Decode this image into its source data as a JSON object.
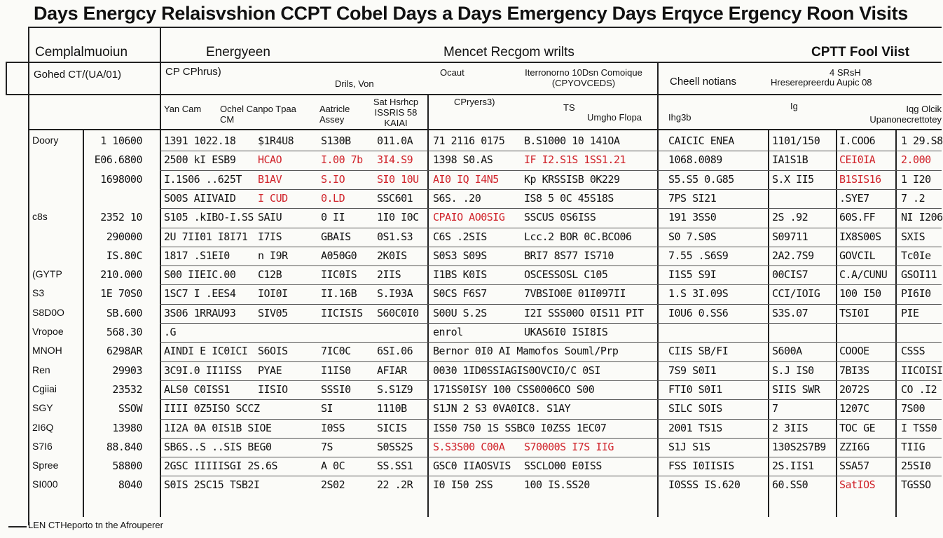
{
  "title": "Days Energcy Relaisvshion CCPT Cobel Days a Days Emergency Days Erqyce Ergency Roon Visits",
  "header": {
    "group1": "Cemplalmuoiun",
    "group1_sub": "Gohed CT/(UA/01)",
    "group2": "Energyeen",
    "group2_sub": "CP CPhrus)",
    "group2_sub2": "Drils, Von",
    "group3": "Mencet Recgom wrilts",
    "group3_sub_a": "Ocaut",
    "group3_sub_b": "Iterronorno 10Dsn Comoique (CPYOVCEDS)",
    "group4": "CPTT Fool Viist",
    "group4_sub_a": "Cheell notians",
    "group4_sub_b": "Hreserepreerdu Aupic 08",
    "group4_sub_c": "4  SRsH",
    "col_a": "Yan Cam",
    "col_b": "Ochel Canpo Tpaa CM",
    "col_c": "Aatricle Assey",
    "col_d": "Sat Hsrhcp ISSRIS 58 KAIAI",
    "col_e": "CPryers3)",
    "col_f": "TS",
    "col_g": "Umgho Flopa",
    "col_h": "Ihg3b",
    "col_i": "Ig",
    "col_j": "Iqg Olcik Upanonecrettotey"
  },
  "rows": [
    {
      "label": "Doory",
      "v": "1 10600",
      "a": "1391  1022.18",
      "b": "$1R4U8",
      "c": "S130B",
      "d": "011.0A",
      "e": "71 2116 0175",
      "f": "B.S1000 10 141OA",
      "g": "CAICIC ENEA",
      "h": "1101/150",
      "i": "I.COO6",
      "j": "1 29.S8"
    },
    {
      "label": "",
      "v": "E06.6800",
      "a": "2500 kI  ESB9",
      "b": "HCAO",
      "c": "I.00  7b",
      "d": "3I4.S9",
      "e": "1398 S0.AS",
      "f": "IF I2.S1S 1SS1.21",
      "g": "1068.0089",
      "h": "IA1S1B",
      "i": "CEI0IA",
      "j": "2.000"
    },
    {
      "label": "",
      "v": "1698000",
      "a": "I.1S06 ..625T",
      "b": "B1AV",
      "c": "S.IO",
      "d": "SI0 10U",
      "e": "AI0 IQ  I4N5",
      "f": "Kp KRSSISB 0K229",
      "g": "S5.S5 0.G85",
      "h": "S.X II5",
      "i": "B1SIS16",
      "j": "1  I20"
    },
    {
      "label": "",
      "v": "",
      "a": "SO0S  AIIVAID",
      "b": "I CUD",
      "c": "0.LD",
      "d": "SSC601",
      "e": "S6S.  .20",
      "f": "IS8 5 0C 45S18S",
      "g": "7PS  SI21",
      "h": "",
      "i": ".SYE7",
      "j": "7  .2"
    },
    {
      "label": "c8s",
      "v": "2352 10",
      "a": "S105  .kIBO-I.SS",
      "b": "SAIU",
      "c": "0  II",
      "d": "1I0 I0C",
      "e": "CPAIO AO0SIG",
      "f": "SSCUS 0S6ISS",
      "g": "191  3SS0",
      "h": "2S  .92",
      "i": "60S.FF",
      "j": "NI I206"
    },
    {
      "label": "",
      "v": "290000",
      "a": "2U  7II01 I8I71",
      "b": "I7IS",
      "c": "GBAIS",
      "d": "0S1.S3",
      "e": "C6S  .2SIS",
      "f": "Lcc.2 BOR  0C.BCO06",
      "g": "S0  7.S0S",
      "h": "S09711",
      "i": "IX8S00S",
      "j": "SXIS"
    },
    {
      "label": "",
      "v": "IS.80C",
      "a": "1817  .S1EI0",
      "b": "n I9R",
      "c": "A050G0",
      "d": "2K0IS",
      "e": "S0S3  S09S",
      "f": "BRI7  8S77  IS710",
      "g": "7.55  .S6S9",
      "h": "2A2.7S9",
      "i": "GOVCIL",
      "j": "Tc0Ie"
    },
    {
      "label": "(GYTP",
      "v": "210.000",
      "a": "S00  IIEIC.00",
      "b": "C12B",
      "c": "IIC0IS",
      "d": "2IIS",
      "e": "I1BS  K0IS",
      "f": "OSCESSOSL  C105",
      "g": "I1S5  S9I",
      "h": "00CIS7",
      "i": "C.A/CUNU",
      "j": "GSOI11"
    },
    {
      "label": "S3",
      "v": "1E 70S0",
      "a": "1SC7 I .EES4",
      "b": "IOI0I",
      "c": "II.16B",
      "d": "S.I93A",
      "e": "S0CS  F6S7",
      "f": "7VBSIO0E  01I097II",
      "g": "1.S  3I.09S",
      "h": "CCI/IOIG",
      "i": "100 I50",
      "j": "PI6I0"
    },
    {
      "label": "S8D0O",
      "v": "SB.600",
      "a": "3S06 1RRAU93",
      "b": "SIV05",
      "c": "IICISIS",
      "d": "S60C0I0",
      "e": "S00U  S.2S",
      "f": "I2I SSS00O 0IS11  PIT",
      "g": "I0U6  0.SS6",
      "h": "S3S.07",
      "i": "TSI0I",
      "j": "PIE"
    },
    {
      "label": "Vropoe",
      "v": "568.30",
      "a": ".G",
      "b": "",
      "c": "",
      "d": "",
      "e": "enrol",
      "f": "UKAS6I0  ISI8IS",
      "g": "",
      "h": "",
      "i": "",
      "j": ""
    },
    {
      "label": "MNOH",
      "v": "6298AR",
      "a": "AINDI E IC0ICI",
      "b": "S6OIS",
      "c": "7IC0C",
      "d": "6SI.06",
      "e": "Bernor 0I0 AI Mamofos Souml/Prp",
      "f": "",
      "g": "CIIS  SB/FI",
      "h": "S600A",
      "i": "COOOE",
      "j": "CSSS"
    },
    {
      "label": "Ren",
      "v": "29903",
      "a": "3C9I.0 II1ISS",
      "b": "PYAE",
      "c": "I1IS0",
      "d": "AFIAR",
      "e": "0030 1ID0SSIAGIS0OVCIO/C 0SI",
      "f": "",
      "g": "7S9  S0I1",
      "h": "S.J IS0",
      "i": "7BI3S",
      "j": "IICOISI"
    },
    {
      "label": "Cgiiai",
      "v": "23532",
      "a": "ALS0 C0ISS1",
      "b": "IISIO",
      "c": "SSSI0",
      "d": "S.S1Z9",
      "e": "171SS0ISY 100 CSS0006CO  S00",
      "f": "",
      "g": "FTI0  S0I1",
      "h": "SIIS SWR",
      "i": "2072S",
      "j": "CO .I2"
    },
    {
      "label": "SGY",
      "v": "SSOW",
      "a": "IIII  0Z5ISO  SCCZ",
      "b": "",
      "c": "SI",
      "d": "1110B",
      "e": "S1JN 2 S3  0VA0IC8.  S1AY",
      "f": "",
      "g": "SILC  SOIS",
      "h": "7",
      "i": "1207C",
      "j": "7S00"
    },
    {
      "label": "2I6Q",
      "v": "13980",
      "a": "1I2A  0A 0IS1B SIOE",
      "b": "",
      "c": "I0SS",
      "d": "SICIS",
      "e": "ISS0 7S0 1S SSBC0  I0ZSS  1EC07",
      "f": "",
      "g": "2001  TS1S",
      "h": "2  3IIS",
      "i": "TOC GE",
      "j": "I TSS0"
    },
    {
      "label": "S7I6",
      "v": "88.840",
      "a": "SB6S..S ..SIS  BEG0",
      "b": "",
      "c": "7S",
      "d": "S0SS2S",
      "e": "S.S3S00 C00A",
      "f": "S70000S  I7S IIG",
      "g": "S1J  S1S",
      "h": "130S2S7B9",
      "i": "ZZI6G",
      "j": "TIIG"
    },
    {
      "label": "Spree",
      "v": "58800",
      "a": "2GSC  IIIIISGI  2S.6S",
      "b": "",
      "c": "A  0C",
      "d": "SS.SS1",
      "e": "GSC0 IIAOSVIS",
      "f": "SSCLO00  E0ISS",
      "g": "FSS  I0IISIS",
      "h": "2S.IIS1",
      "i": "SSA57",
      "j": "25SI0"
    },
    {
      "label": "SI000",
      "v": "8040",
      "a": "S0IS  2SC15  TSB2I",
      "b": "",
      "c": "2S02",
      "d": "22  .2R",
      "e": "I0  I50  2SS",
      "f": "100   IS.SS20",
      "g": "I0SSS  IS.620",
      "h": "60.SS0",
      "i": "SatIOS",
      "j": "TGSSO"
    }
  ],
  "footer": "LEN CTHeporto tn  the Afrouperer"
}
